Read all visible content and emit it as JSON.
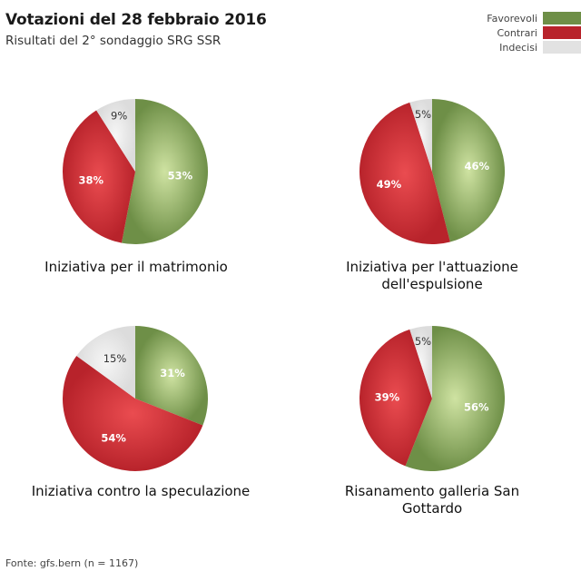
{
  "header": {
    "title": "Votazioni del 28 febbraio 2016",
    "subtitle": "Risultati del 2° sondaggio SRG SSR"
  },
  "legend": [
    {
      "label": "Favorevoli",
      "color": "#6e8f47"
    },
    {
      "label": "Contrari",
      "color": "#b8232b"
    },
    {
      "label": "Indecisi",
      "color": "#e2e2e2"
    }
  ],
  "chart_data": [
    {
      "type": "pie",
      "title": "Iniziativa per il matrimonio",
      "slices": [
        {
          "name": "Favorevoli",
          "value": 53,
          "label": "53%"
        },
        {
          "name": "Contrari",
          "value": 38,
          "label": "38%"
        },
        {
          "name": "Indecisi",
          "value": 9,
          "label": "9%"
        }
      ]
    },
    {
      "type": "pie",
      "title": "Iniziativa per l'attuazione dell'espulsione",
      "slices": [
        {
          "name": "Favorevoli",
          "value": 46,
          "label": "46%"
        },
        {
          "name": "Contrari",
          "value": 49,
          "label": "49%"
        },
        {
          "name": "Indecisi",
          "value": 5,
          "label": "5%"
        }
      ]
    },
    {
      "type": "pie",
      "title": "Iniziativa contro la speculazione",
      "slices": [
        {
          "name": "Favorevoli",
          "value": 31,
          "label": "31%"
        },
        {
          "name": "Contrari",
          "value": 54,
          "label": "54%"
        },
        {
          "name": "Indecisi",
          "value": 15,
          "label": "15%"
        }
      ]
    },
    {
      "type": "pie",
      "title": "Risanamento galleria San Gottardo",
      "slices": [
        {
          "name": "Favorevoli",
          "value": 56,
          "label": "56%"
        },
        {
          "name": "Contrari",
          "value": 39,
          "label": "39%"
        },
        {
          "name": "Indecisi",
          "value": 5,
          "label": "5%"
        }
      ]
    }
  ],
  "footer": {
    "source": "Fonte: gfs.bern (n = 1167)"
  }
}
